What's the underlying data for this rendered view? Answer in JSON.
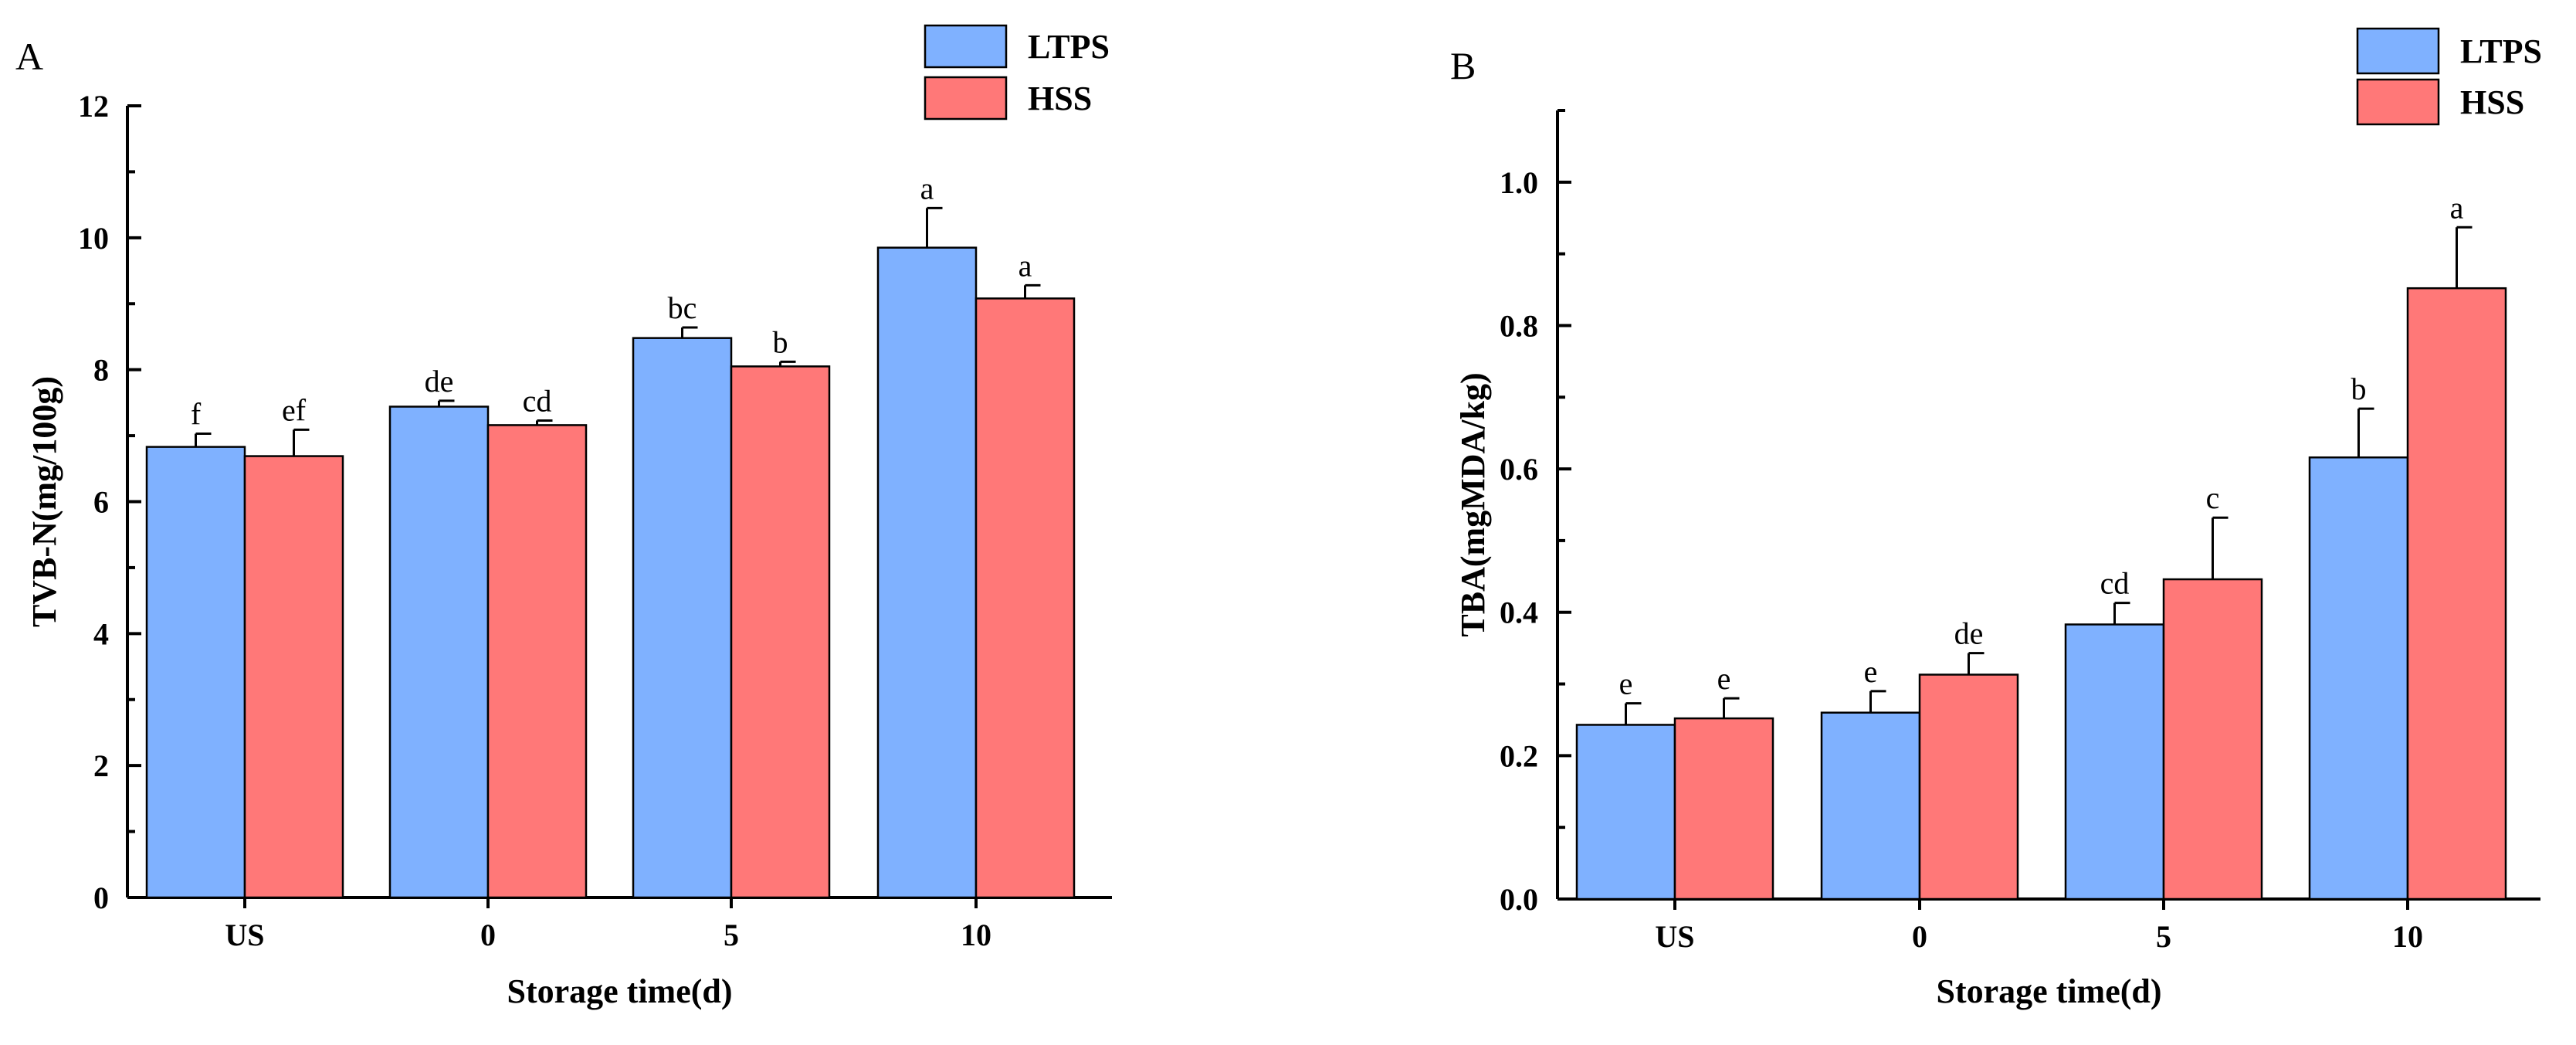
{
  "colors": {
    "LTPS": "#7fb1ff",
    "HSS": "#ff7878",
    "axis": "#000000",
    "error_bar": "#000000"
  },
  "chart_data": [
    {
      "panel": "A",
      "type": "bar",
      "title": "",
      "xlabel": "Storage time(d)",
      "ylabel": "TVB-N(mg/100g)",
      "ylim": [
        0,
        12
      ],
      "y_ticks": [
        "0",
        "2",
        "4",
        "6",
        "8",
        "10",
        "12"
      ],
      "y_tick_values": [
        0,
        2,
        4,
        6,
        8,
        10,
        12
      ],
      "y_minor_step": 1,
      "categories": [
        "US",
        "0",
        "5",
        "10"
      ],
      "legend_position": "top-right",
      "grid": false,
      "series": [
        {
          "name": "LTPS",
          "values": [
            6.83,
            7.44,
            8.48,
            9.85
          ],
          "errors": [
            0.2,
            0.09,
            0.16,
            0.6
          ],
          "labels": [
            "f",
            "de",
            "bc",
            "a"
          ]
        },
        {
          "name": "HSS",
          "values": [
            6.69,
            7.16,
            8.05,
            9.08
          ],
          "errors": [
            0.4,
            0.07,
            0.07,
            0.2
          ],
          "labels": [
            "ef",
            "cd",
            "b",
            "a"
          ]
        }
      ]
    },
    {
      "panel": "B",
      "type": "bar",
      "title": "",
      "xlabel": "Storage time(d)",
      "ylabel": "TBA(mgMDA/kg)",
      "ylim": [
        0,
        1.1
      ],
      "y_ticks": [
        "0.0",
        "0.2",
        "0.4",
        "0.6",
        "0.8",
        "1.0"
      ],
      "y_tick_values": [
        0,
        0.2,
        0.4,
        0.6,
        0.8,
        1.0
      ],
      "y_minor_step": 0.1,
      "categories": [
        "US",
        "0",
        "5",
        "10"
      ],
      "legend_position": "top-right",
      "grid": false,
      "series": [
        {
          "name": "LTPS",
          "values": [
            0.243,
            0.26,
            0.383,
            0.616
          ],
          "errors": [
            0.03,
            0.03,
            0.03,
            0.068
          ],
          "labels": [
            "e",
            "e",
            "cd",
            "b"
          ]
        },
        {
          "name": "HSS",
          "values": [
            0.252,
            0.313,
            0.446,
            0.852
          ],
          "errors": [
            0.028,
            0.03,
            0.086,
            0.085
          ],
          "labels": [
            "e",
            "de",
            "c",
            "a"
          ]
        }
      ]
    }
  ]
}
